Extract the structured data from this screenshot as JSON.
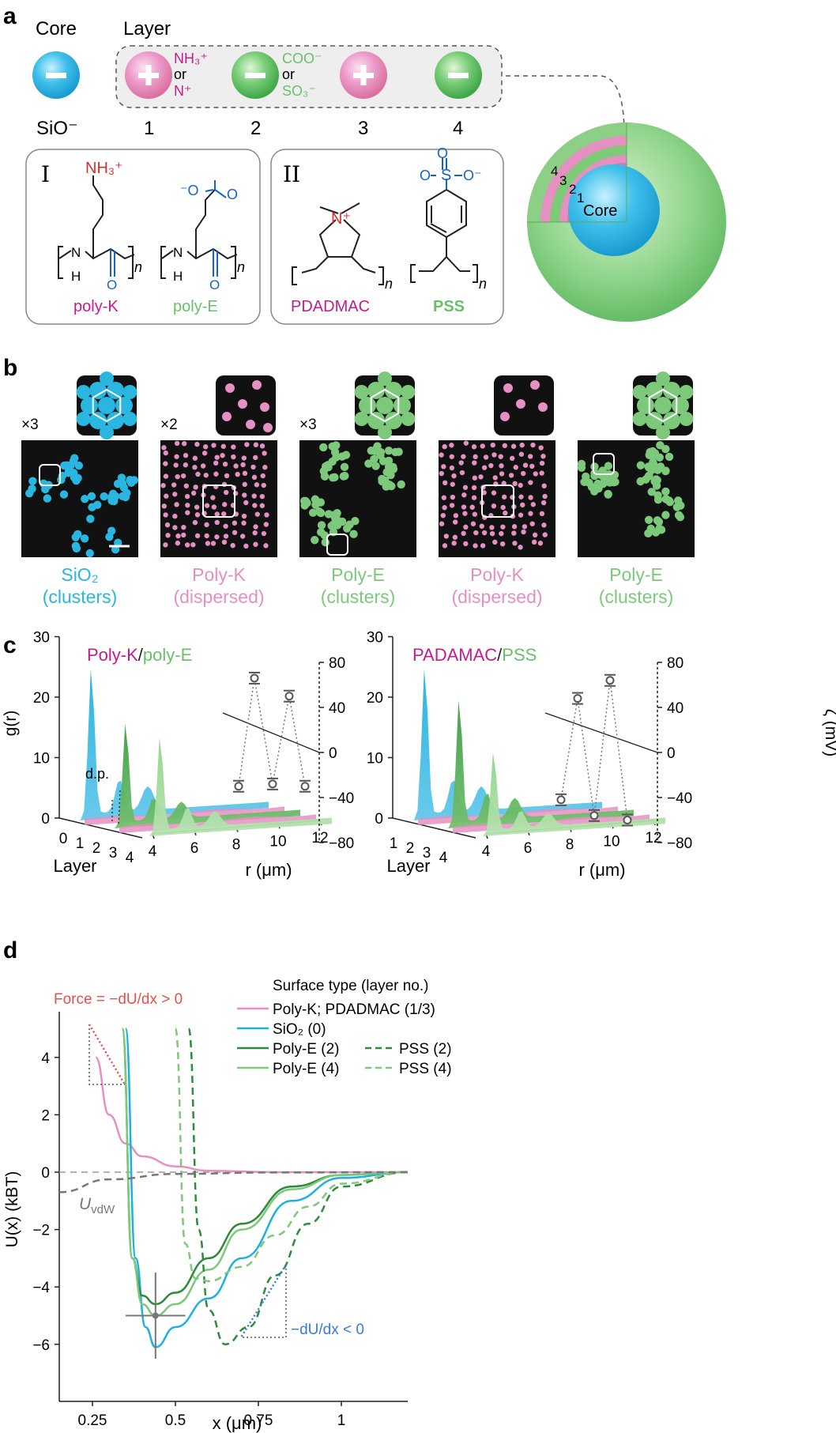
{
  "panel_a": {
    "letter": "a",
    "core_label": "Core",
    "layer_label": "Layer",
    "core_charge": "−",
    "core_name": "SiO⁻",
    "layers": [
      {
        "num": "1",
        "sign": "+",
        "color": "#e58fc2"
      },
      {
        "num": "2",
        "sign": "−",
        "color": "#6fc66f"
      },
      {
        "num": "3",
        "sign": "+",
        "color": "#e58fc2"
      },
      {
        "num": "4",
        "sign": "−",
        "color": "#6fc66f"
      }
    ],
    "cation_groups": {
      "a": "NH₃⁺",
      "or": "or",
      "b": "N⁺"
    },
    "anion_groups": {
      "a": "COO⁻",
      "or": "or",
      "b": "SO₃⁻"
    },
    "box_I": {
      "roman": "I",
      "cation_name": "poly-K",
      "anion_name": "poly-E",
      "nh3": "NH₃⁺",
      "carboxylate": "⁻O",
      "n": "n",
      "nh": "N",
      "h": "H",
      "o": "O"
    },
    "box_II": {
      "roman": "II",
      "cation_name": "PDADMAC",
      "anion_name": "PSS",
      "n_plus": "N⁺",
      "sulfonate_s": "S",
      "sulfonate_o": "O",
      "sulfonate_om": "O⁻",
      "n": "n"
    },
    "sphere": {
      "core": "Core",
      "layer_numbers": [
        "4",
        "3",
        "2",
        "1"
      ]
    }
  },
  "panel_b": {
    "letter": "b",
    "items": [
      {
        "mult": "×3",
        "name": "SiO₂",
        "state": "(clusters)",
        "color": "#29b6e0"
      },
      {
        "mult": "×2",
        "name": "Poly-K",
        "state": "(dispersed)",
        "color": "#e58fc2"
      },
      {
        "mult": "×3",
        "name": "Poly-E",
        "state": "(clusters)",
        "color": "#7cc97c"
      },
      {
        "mult": "",
        "name": "Poly-K",
        "state": "(dispersed)",
        "color": "#e58fc2"
      },
      {
        "mult": "",
        "name": "Poly-E",
        "state": "(clusters)",
        "color": "#7cc97c"
      }
    ]
  },
  "panel_c": {
    "letter": "c",
    "left": {
      "title_a": "Poly-K",
      "slash": "/",
      "title_b": "poly-E",
      "dp": "d.p."
    },
    "right": {
      "title_a": "PADAMAC",
      "slash": "/",
      "title_b": "PSS"
    },
    "y_label": "g(r)",
    "z_label": "ζ (mV)",
    "x_label": "r (μm)",
    "layer_label": "Layer",
    "y_ticks": [
      "0",
      "10",
      "20",
      "30"
    ],
    "z_ticks": [
      "80",
      "40",
      "0",
      "−40",
      "−80"
    ],
    "x_ticks": [
      "4",
      "6",
      "8",
      "10",
      "12"
    ],
    "layer_ticks": [
      "0",
      "1",
      "2",
      "3",
      "4"
    ]
  },
  "chart_data": [
    {
      "type": "line",
      "title": "Poly-K/poly-E",
      "xlabel": "Layer",
      "ylabel": "ζ (mV)",
      "x": [
        0,
        1,
        2,
        3,
        4
      ],
      "series": [
        {
          "values": [
            -30,
            66,
            -28,
            50,
            -30
          ]
        }
      ],
      "ylim": [
        -80,
        80
      ]
    },
    {
      "type": "line",
      "title": "PADAMAC/PSS",
      "xlabel": "Layer",
      "ylabel": "ζ (mV)",
      "x": [
        0,
        1,
        2,
        3,
        4
      ],
      "series": [
        {
          "values": [
            -42,
            48,
            -56,
            64,
            -60
          ]
        }
      ],
      "ylim": [
        -80,
        80
      ]
    },
    {
      "type": "line",
      "title": "",
      "xlabel": "x (μm)",
      "ylabel": "U(x) (kBT)",
      "xlim": [
        0.15,
        1.2
      ],
      "ylim": [
        -7,
        4
      ],
      "series": [
        {
          "name": "Poly-K; PDADMAC (1/3)",
          "x": [
            0.26,
            0.3,
            0.35,
            0.4,
            0.5,
            0.6,
            0.8,
            1.2
          ],
          "y": [
            4.0,
            2.0,
            1.0,
            0.55,
            0.2,
            0.05,
            0.0,
            0.0
          ]
        },
        {
          "name": "SiO₂ (0)",
          "x": [
            0.38,
            0.41,
            0.44,
            0.5,
            0.6,
            0.7,
            0.85,
            1.0,
            1.2
          ],
          "y": [
            -3.0,
            -5.4,
            -6.1,
            -5.4,
            -4.4,
            -3.0,
            -1.0,
            -0.2,
            0.0
          ]
        },
        {
          "name": "Poly-E (2)",
          "x": [
            0.37,
            0.4,
            0.44,
            0.5,
            0.6,
            0.7,
            0.85,
            1.0,
            1.2
          ],
          "y": [
            -3.0,
            -4.3,
            -4.6,
            -4.2,
            -3.0,
            -1.8,
            -0.5,
            -0.1,
            0.0
          ]
        },
        {
          "name": "Poly-E (4)",
          "x": [
            0.37,
            0.4,
            0.44,
            0.5,
            0.6,
            0.7,
            0.85,
            1.0,
            1.2
          ],
          "y": [
            -3.0,
            -4.6,
            -5.0,
            -4.6,
            -3.4,
            -2.0,
            -0.6,
            -0.1,
            0.0
          ]
        },
        {
          "name": "PSS (2)",
          "x": [
            0.57,
            0.6,
            0.65,
            0.72,
            0.8,
            0.9,
            1.0,
            1.2
          ],
          "y": [
            -2.0,
            -4.8,
            -6.0,
            -5.4,
            -3.6,
            -1.8,
            -0.5,
            0.0
          ]
        },
        {
          "name": "PSS (4)",
          "x": [
            0.53,
            0.56,
            0.6,
            0.7,
            0.8,
            0.9,
            1.0,
            1.2
          ],
          "y": [
            -2.5,
            -3.7,
            -3.8,
            -3.3,
            -2.2,
            -1.2,
            -0.4,
            0.0
          ]
        },
        {
          "name": "U vdW",
          "x": [
            0.15,
            0.3,
            0.5,
            0.8,
            1.2
          ],
          "y": [
            -0.7,
            -0.25,
            -0.06,
            -0.01,
            0.0
          ]
        }
      ]
    }
  ],
  "panel_d": {
    "letter": "d",
    "legend_title": "Surface type (layer no.)",
    "legend": [
      {
        "label": "Poly-K; PDADMAC (1/3)",
        "color": "#e58fc2",
        "dash": false
      },
      {
        "label": "SiO₂ (0)",
        "color": "#1fb0e0",
        "dash": false
      },
      {
        "label": "Poly-E (2)",
        "color": "#2f8a3b",
        "dash": false
      },
      {
        "label": "Poly-E (4)",
        "color": "#7cc97c",
        "dash": false
      }
    ],
    "legend_dash": [
      {
        "label": "PSS (2)",
        "color": "#2f8a3b"
      },
      {
        "label": "PSS (4)",
        "color": "#7cc97c"
      }
    ],
    "force_pos": "Force = −dU/dx > 0",
    "force_neg": "−dU/dx < 0",
    "uvdw": "U",
    "uvdw_sub": "vdW",
    "y_label": "U(x) (kBT)",
    "x_label": "x (μm)",
    "y_ticks": [
      "4",
      "2",
      "0",
      "−2",
      "−4",
      "−6"
    ],
    "x_ticks": [
      "0.25",
      "0.5",
      "0.75",
      "1"
    ]
  }
}
